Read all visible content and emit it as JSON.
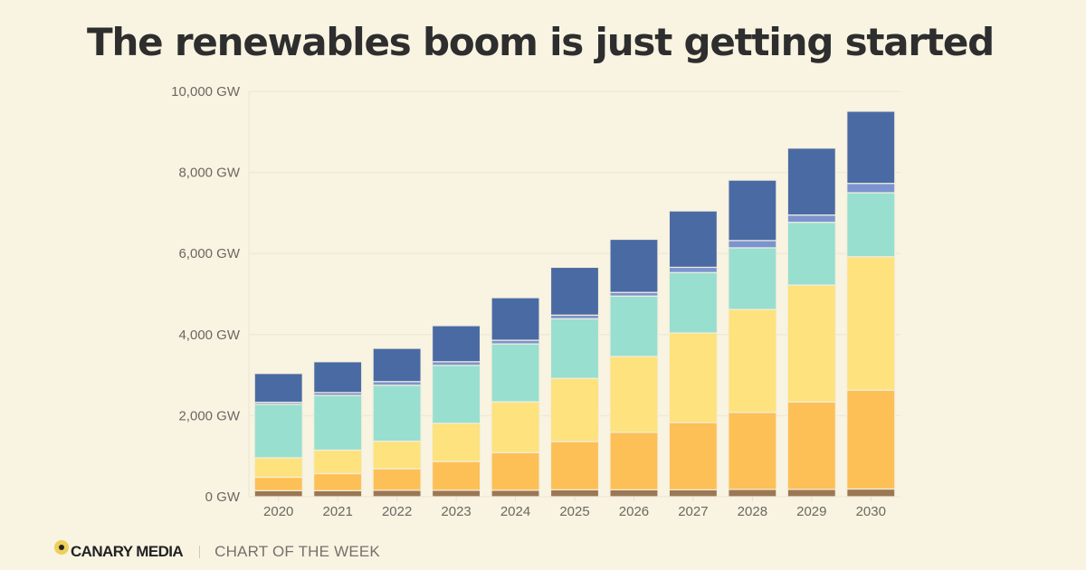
{
  "title": "The renewables boom is just getting started",
  "footer": {
    "brand": "CANARY MEDIA",
    "tagline": "CHART OF THE WEEK",
    "logo_icon": "canary-dot-logo"
  },
  "chart_data": {
    "type": "bar",
    "stacked": true,
    "title": "The renewables boom is just getting started",
    "xlabel": "",
    "ylabel": "",
    "ylim": [
      0,
      10000
    ],
    "yticks": [
      0,
      2000,
      4000,
      6000,
      8000,
      10000
    ],
    "ytick_labels": [
      "0 GW",
      "2,000 GW",
      "4,000 GW",
      "6,000 GW",
      "8,000 GW",
      "10,000 GW"
    ],
    "grid": true,
    "legend": "none",
    "categories": [
      "2020",
      "2021",
      "2022",
      "2023",
      "2024",
      "2025",
      "2026",
      "2027",
      "2028",
      "2029",
      "2030"
    ],
    "series": [
      {
        "name": "Segment 1 (brown)",
        "color": "#9b7755",
        "values": [
          150,
          150,
          160,
          160,
          160,
          170,
          170,
          170,
          180,
          180,
          190
        ]
      },
      {
        "name": "Segment 2 (orange)",
        "color": "#fdc056",
        "values": [
          330,
          420,
          530,
          710,
          930,
          1190,
          1420,
          1660,
          1900,
          2160,
          2440
        ]
      },
      {
        "name": "Segment 3 (yellow)",
        "color": "#fde27d",
        "values": [
          480,
          580,
          680,
          940,
          1250,
          1560,
          1870,
          2210,
          2540,
          2880,
          3290
        ]
      },
      {
        "name": "Segment 4 (teal)",
        "color": "#98dfcf",
        "values": [
          1320,
          1350,
          1380,
          1430,
          1430,
          1470,
          1490,
          1490,
          1520,
          1550,
          1580
        ]
      },
      {
        "name": "Segment 5 (light blue)",
        "color": "#7b94cf",
        "values": [
          50,
          70,
          90,
          90,
          90,
          90,
          90,
          130,
          180,
          180,
          230
        ]
      },
      {
        "name": "Segment 6 (dark blue)",
        "color": "#4a6aa3",
        "values": [
          710,
          760,
          820,
          890,
          1050,
          1180,
          1310,
          1390,
          1490,
          1650,
          1780
        ]
      }
    ]
  }
}
